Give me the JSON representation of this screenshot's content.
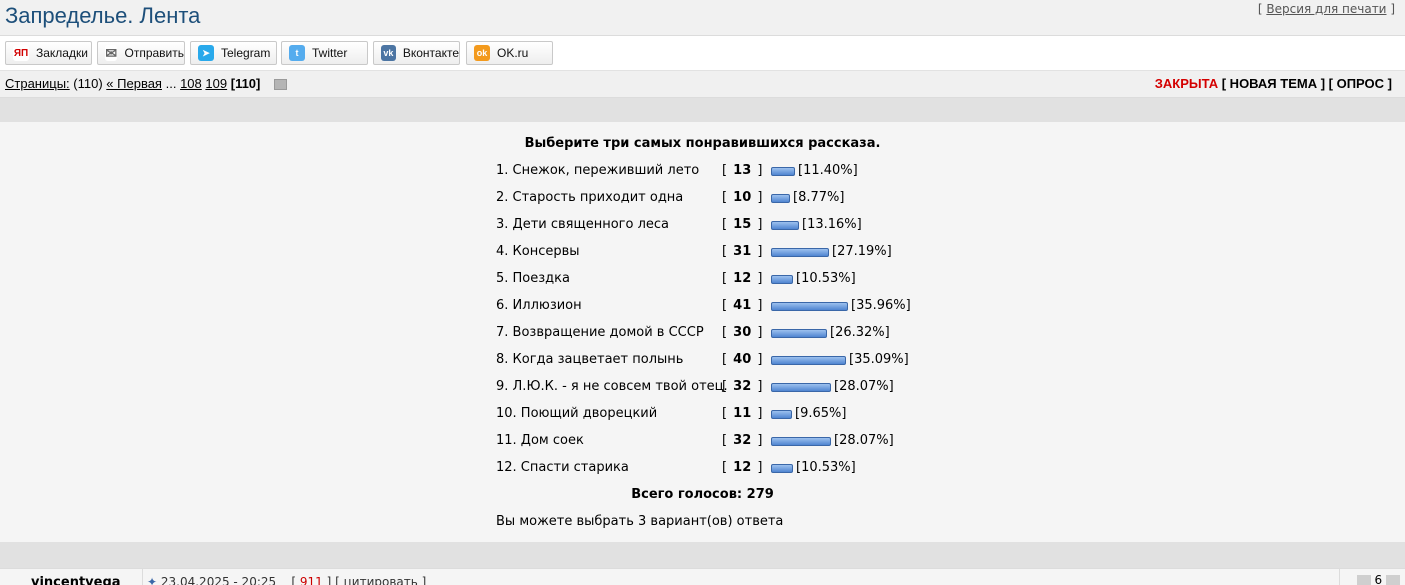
{
  "header": {
    "forum_title": "Запределье. Лента",
    "print_prefix": "[",
    "print_link": "Версия для печати",
    "print_suffix": "]"
  },
  "share": [
    {
      "label": "Закладки",
      "icon": "yandex-bookmarks-icon",
      "icon_text": "ЯП",
      "color": "#ffffff"
    },
    {
      "label": "Отправить",
      "icon": "email-icon",
      "icon_text": "✉",
      "color": "#ffffff"
    },
    {
      "label": "Telegram",
      "icon": "telegram-icon",
      "icon_text": "➤",
      "color": "#29a9eb"
    },
    {
      "label": "Twitter",
      "icon": "twitter-icon",
      "icon_text": "t",
      "color": "#55acee"
    },
    {
      "label": "Вконтакте",
      "icon": "vk-icon",
      "icon_text": "vk",
      "color": "#4c75a3"
    },
    {
      "label": "OK.ru",
      "icon": "odnoklassniki-icon",
      "icon_text": "ok",
      "color": "#f39a1d"
    }
  ],
  "pager": {
    "label": "Страницы:",
    "total": "(110)",
    "first": "« Первая",
    "ellipsis": "...",
    "p1": "108",
    "p2": "109",
    "current": "[110]"
  },
  "topic_actions": {
    "closed": "ЗАКРЫТА",
    "new_topic": "[ НОВАЯ ТЕМА ]",
    "poll": "[ ОПРОС ]"
  },
  "poll": {
    "question": "Выберите три самых понравившихся рассказа.",
    "options": [
      {
        "label": "1. Снежок, переживший лето",
        "votes": "13",
        "percent": "[11.40%]",
        "pct": 11.4
      },
      {
        "label": "2. Старость приходит одна",
        "votes": "10",
        "percent": "[8.77%]",
        "pct": 8.77
      },
      {
        "label": "3. Дети священного леса",
        "votes": "15",
        "percent": "[13.16%]",
        "pct": 13.16
      },
      {
        "label": "4. Консервы",
        "votes": "31",
        "percent": "[27.19%]",
        "pct": 27.19
      },
      {
        "label": "5. Поездка",
        "votes": "12",
        "percent": "[10.53%]",
        "pct": 10.53
      },
      {
        "label": "6. Иллюзион",
        "votes": "41",
        "percent": "[35.96%]",
        "pct": 35.96
      },
      {
        "label": "7. Возвращение домой в СССР",
        "votes": "30",
        "percent": "[26.32%]",
        "pct": 26.32
      },
      {
        "label": "8. Когда зацветает полынь",
        "votes": "40",
        "percent": "[35.09%]",
        "pct": 35.09
      },
      {
        "label": "9. Л.Ю.К. - я не совсем твой отец.",
        "votes": "32",
        "percent": "[28.07%]",
        "pct": 28.07
      },
      {
        "label": "10. Поющий дворецкий",
        "votes": "11",
        "percent": "[9.65%]",
        "pct": 9.65
      },
      {
        "label": "11. Дом соек",
        "votes": "32",
        "percent": "[28.07%]",
        "pct": 28.07
      },
      {
        "label": "12. Спасти старика",
        "votes": "12",
        "percent": "[10.53%]",
        "pct": 10.53
      }
    ],
    "total_label": "Всего голосов: 279",
    "note": "Вы можете выбрать 3 вариант(ов) ответа"
  },
  "post": {
    "author": "vincentvega",
    "date": "23.04.2025 - 20:25",
    "number": "911",
    "quote": "[ цитировать ]",
    "rating": "6"
  }
}
